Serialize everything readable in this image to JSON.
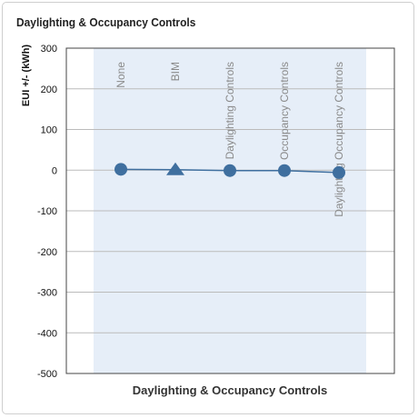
{
  "panel": {
    "title": "Daylighting & Occupancy Controls"
  },
  "colors": {
    "band": "#e6eef8",
    "series": "#3f6f9f",
    "grid": "#bbbbbb",
    "axis": "#444444"
  },
  "chart_data": {
    "type": "line",
    "title": "",
    "xlabel": "Daylighting & Occupancy Controls",
    "ylabel": "EUI +/- (kWh)",
    "ylim": [
      -500,
      300
    ],
    "yticks": [
      300,
      200,
      100,
      0,
      -100,
      -200,
      -300,
      -400,
      -500
    ],
    "grid": true,
    "categories": [
      "None",
      "BIM",
      "Daylighting Controls",
      "Occupancy Controls",
      "Daylighting Occupancy Controls"
    ],
    "series": [
      {
        "values": [
          2,
          1,
          -1,
          -1,
          -6
        ],
        "markers": [
          "circle",
          "triangle",
          "circle",
          "circle",
          "circle"
        ]
      }
    ]
  }
}
